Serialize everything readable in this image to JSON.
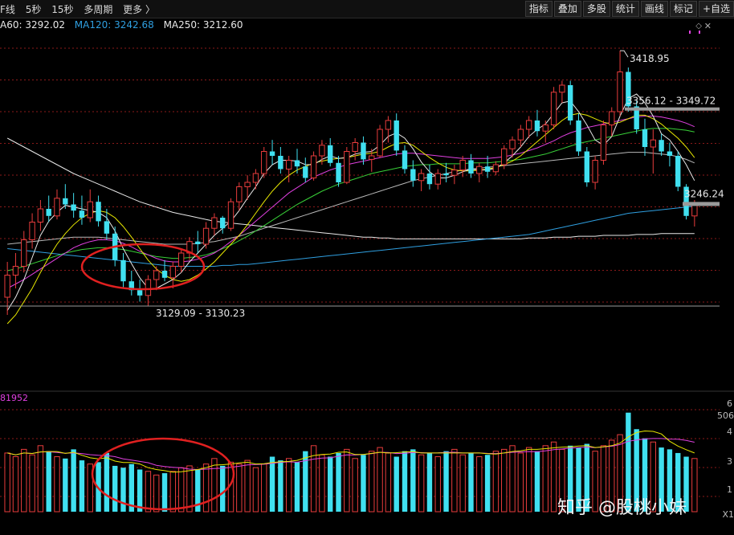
{
  "toolbar": {
    "left": [
      "F线",
      "5秒",
      "15秒",
      "多周期",
      "更多 〉"
    ],
    "right": [
      "指标",
      "叠加",
      "多股",
      "统计",
      "画线",
      "标记",
      "+自选"
    ]
  },
  "ma_legend": [
    {
      "label": "A60: 3292.02",
      "color": "#e8e8e8"
    },
    {
      "label": "MA120: 3242.68",
      "color": "#2f9fe0"
    },
    {
      "label": "MA250: 3212.60",
      "color": "#e8e8e8"
    }
  ],
  "icons": {
    "diamond": "diamond-icon",
    "close": "close-icon",
    "dots": "dots-icon"
  },
  "chart_data": {
    "type": "candlestick",
    "price_range": [
      3040,
      3440
    ],
    "annotations": {
      "high": "3418.95",
      "resistance": "3356.12 - 3349.72",
      "current": "3246.24",
      "support": "3129.09 - 3130.23"
    },
    "levels": {
      "resistance": 3353,
      "current": 3246,
      "support": 3130
    },
    "volume_label": "81952",
    "volume_right_labels": [
      "6",
      "506",
      "4",
      "3",
      "1",
      "X1"
    ],
    "candles": [
      [
        3140,
        3180,
        3120,
        3165
      ],
      [
        3165,
        3190,
        3150,
        3175
      ],
      [
        3175,
        3215,
        3168,
        3205
      ],
      [
        3205,
        3235,
        3195,
        3225
      ],
      [
        3225,
        3250,
        3215,
        3240
      ],
      [
        3240,
        3255,
        3225,
        3232
      ],
      [
        3232,
        3262,
        3228,
        3252
      ],
      [
        3252,
        3268,
        3240,
        3245
      ],
      [
        3245,
        3258,
        3230,
        3238
      ],
      [
        3238,
        3255,
        3222,
        3230
      ],
      [
        3230,
        3262,
        3225,
        3248
      ],
      [
        3248,
        3255,
        3220,
        3226
      ],
      [
        3226,
        3240,
        3205,
        3212
      ],
      [
        3212,
        3220,
        3175,
        3182
      ],
      [
        3182,
        3190,
        3150,
        3158
      ],
      [
        3158,
        3170,
        3142,
        3148
      ],
      [
        3148,
        3160,
        3135,
        3142
      ],
      [
        3142,
        3165,
        3130,
        3160
      ],
      [
        3160,
        3175,
        3148,
        3170
      ],
      [
        3170,
        3182,
        3158,
        3162
      ],
      [
        3162,
        3180,
        3150,
        3175
      ],
      [
        3175,
        3195,
        3168,
        3190
      ],
      [
        3190,
        3208,
        3182,
        3203
      ],
      [
        3203,
        3215,
        3190,
        3200
      ],
      [
        3200,
        3225,
        3195,
        3218
      ],
      [
        3218,
        3235,
        3210,
        3230
      ],
      [
        3230,
        3232,
        3212,
        3218
      ],
      [
        3218,
        3252,
        3215,
        3248
      ],
      [
        3248,
        3270,
        3238,
        3265
      ],
      [
        3265,
        3278,
        3250,
        3270
      ],
      [
        3270,
        3285,
        3262,
        3280
      ],
      [
        3280,
        3310,
        3275,
        3305
      ],
      [
        3305,
        3318,
        3290,
        3300
      ],
      [
        3300,
        3310,
        3280,
        3285
      ],
      [
        3285,
        3300,
        3270,
        3295
      ],
      [
        3295,
        3308,
        3280,
        3288
      ],
      [
        3288,
        3298,
        3270,
        3275
      ],
      [
        3275,
        3305,
        3272,
        3300
      ],
      [
        3300,
        3318,
        3290,
        3312
      ],
      [
        3312,
        3320,
        3288,
        3292
      ],
      [
        3292,
        3300,
        3265,
        3270
      ],
      [
        3270,
        3310,
        3268,
        3305
      ],
      [
        3305,
        3320,
        3295,
        3315
      ],
      [
        3315,
        3322,
        3290,
        3296
      ],
      [
        3296,
        3308,
        3282,
        3300
      ],
      [
        3300,
        3335,
        3298,
        3330
      ],
      [
        3330,
        3345,
        3315,
        3340
      ],
      [
        3340,
        3348,
        3300,
        3306
      ],
      [
        3306,
        3312,
        3280,
        3285
      ],
      [
        3285,
        3295,
        3265,
        3272
      ],
      [
        3272,
        3285,
        3260,
        3280
      ],
      [
        3280,
        3290,
        3262,
        3268
      ],
      [
        3268,
        3285,
        3262,
        3280
      ],
      [
        3280,
        3292,
        3270,
        3278
      ],
      [
        3278,
        3290,
        3268,
        3284
      ],
      [
        3284,
        3300,
        3276,
        3295
      ],
      [
        3295,
        3302,
        3275,
        3280
      ],
      [
        3280,
        3292,
        3270,
        3288
      ],
      [
        3288,
        3300,
        3275,
        3282
      ],
      [
        3282,
        3294,
        3278,
        3290
      ],
      [
        3290,
        3312,
        3285,
        3308
      ],
      [
        3308,
        3322,
        3298,
        3318
      ],
      [
        3318,
        3335,
        3310,
        3330
      ],
      [
        3330,
        3345,
        3320,
        3340
      ],
      [
        3340,
        3352,
        3322,
        3328
      ],
      [
        3328,
        3340,
        3315,
        3335
      ],
      [
        3335,
        3378,
        3330,
        3372
      ],
      [
        3372,
        3385,
        3360,
        3380
      ],
      [
        3380,
        3385,
        3335,
        3340
      ],
      [
        3340,
        3348,
        3300,
        3305
      ],
      [
        3305,
        3310,
        3265,
        3270
      ],
      [
        3270,
        3300,
        3262,
        3295
      ],
      [
        3295,
        3340,
        3290,
        3335
      ],
      [
        3335,
        3355,
        3322,
        3350
      ],
      [
        3350,
        3419,
        3345,
        3395
      ],
      [
        3395,
        3400,
        3350,
        3356
      ],
      [
        3356,
        3362,
        3325,
        3330
      ],
      [
        3330,
        3342,
        3300,
        3310
      ],
      [
        3310,
        3330,
        3280,
        3318
      ],
      [
        3318,
        3325,
        3300,
        3305
      ],
      [
        3305,
        3315,
        3288,
        3300
      ],
      [
        3300,
        3305,
        3260,
        3265
      ],
      [
        3265,
        3268,
        3228,
        3232
      ],
      [
        3232,
        3250,
        3220,
        3246
      ]
    ],
    "volumes": [
      3.2,
      3.0,
      3.4,
      3.1,
      3.6,
      3.3,
      3.0,
      2.9,
      3.4,
      2.8,
      2.6,
      2.7,
      3.2,
      2.5,
      2.4,
      2.6,
      2.3,
      2.2,
      2.0,
      2.1,
      2.2,
      2.4,
      2.5,
      2.3,
      2.6,
      2.9,
      2.5,
      2.7,
      2.6,
      2.8,
      2.4,
      2.6,
      3.0,
      2.8,
      2.9,
      2.7,
      3.3,
      3.6,
      3.1,
      3.0,
      3.2,
      3.4,
      2.9,
      3.1,
      3.3,
      3.5,
      3.2,
      3.0,
      3.3,
      3.4,
      3.1,
      3.2,
      3.0,
      3.3,
      3.4,
      3.1,
      3.2,
      3.0,
      3.1,
      3.3,
      3.4,
      3.6,
      3.2,
      3.5,
      3.3,
      3.6,
      3.8,
      3.4,
      3.6,
      3.5,
      3.7,
      3.3,
      3.6,
      3.9,
      4.2,
      5.4,
      4.5,
      4.0,
      3.8,
      3.5,
      3.4,
      3.2,
      3.0,
      2.9
    ],
    "ma_lines": {
      "ma5": [
        3125,
        3140,
        3160,
        3185,
        3210,
        3226,
        3236,
        3244,
        3242,
        3240,
        3238,
        3236,
        3230,
        3215,
        3195,
        3178,
        3162,
        3150,
        3150,
        3155,
        3160,
        3168,
        3180,
        3190,
        3200,
        3210,
        3218,
        3226,
        3238,
        3252,
        3265,
        3280,
        3290,
        3295,
        3295,
        3294,
        3290,
        3290,
        3296,
        3300,
        3297,
        3298,
        3302,
        3304,
        3305,
        3312,
        3322,
        3326,
        3320,
        3308,
        3293,
        3282,
        3275,
        3275,
        3278,
        3282,
        3285,
        3284,
        3284,
        3286,
        3292,
        3300,
        3310,
        3322,
        3330,
        3336,
        3348,
        3360,
        3362,
        3350,
        3335,
        3318,
        3312,
        3322,
        3345,
        3365,
        3370,
        3360,
        3345,
        3325,
        3318,
        3305,
        3290,
        3272
      ],
      "ma10": [
        3110,
        3120,
        3135,
        3150,
        3168,
        3185,
        3200,
        3212,
        3222,
        3230,
        3235,
        3238,
        3236,
        3230,
        3220,
        3208,
        3195,
        3182,
        3172,
        3165,
        3160,
        3158,
        3160,
        3165,
        3172,
        3180,
        3190,
        3200,
        3210,
        3222,
        3235,
        3248,
        3260,
        3270,
        3278,
        3284,
        3288,
        3292,
        3294,
        3296,
        3297,
        3298,
        3300,
        3302,
        3303,
        3305,
        3310,
        3314,
        3315,
        3312,
        3305,
        3298,
        3292,
        3287,
        3284,
        3283,
        3283,
        3284,
        3285,
        3287,
        3290,
        3294,
        3300,
        3308,
        3316,
        3324,
        3332,
        3340,
        3346,
        3348,
        3346,
        3342,
        3338,
        3336,
        3338,
        3342,
        3346,
        3346,
        3342,
        3336,
        3328,
        3320,
        3310,
        3298
      ],
      "ma20": [
        3150,
        3155,
        3160,
        3166,
        3172,
        3178,
        3184,
        3190,
        3196,
        3200,
        3203,
        3205,
        3205,
        3204,
        3201,
        3197,
        3192,
        3188,
        3184,
        3181,
        3180,
        3180,
        3181,
        3183,
        3186,
        3190,
        3196,
        3203,
        3210,
        3218,
        3226,
        3234,
        3242,
        3250,
        3258,
        3264,
        3270,
        3276,
        3280,
        3284,
        3287,
        3290,
        3292,
        3294,
        3296,
        3298,
        3300,
        3302,
        3303,
        3303,
        3302,
        3301,
        3300,
        3299,
        3298,
        3297,
        3297,
        3297,
        3297,
        3298,
        3299,
        3301,
        3303,
        3306,
        3309,
        3313,
        3317,
        3322,
        3326,
        3329,
        3332,
        3334,
        3336,
        3338,
        3340,
        3342,
        3344,
        3345,
        3345,
        3344,
        3342,
        3340,
        3337,
        3333
      ],
      "ma30": [
        3170,
        3172,
        3175,
        3178,
        3181,
        3184,
        3187,
        3190,
        3192,
        3194,
        3195,
        3196,
        3196,
        3195,
        3194,
        3192,
        3190,
        3188,
        3186,
        3185,
        3184,
        3184,
        3185,
        3186,
        3188,
        3191,
        3195,
        3199,
        3204,
        3209,
        3215,
        3221,
        3227,
        3233,
        3239,
        3245,
        3250,
        3255,
        3260,
        3264,
        3268,
        3271,
        3274,
        3277,
        3280,
        3282,
        3284,
        3286,
        3288,
        3289,
        3290,
        3290,
        3291,
        3291,
        3291,
        3291,
        3292,
        3292,
        3292,
        3293,
        3294,
        3295,
        3296,
        3298,
        3300,
        3302,
        3305,
        3308,
        3311,
        3314,
        3316,
        3318,
        3320,
        3322,
        3324,
        3326,
        3328,
        3330,
        3331,
        3331,
        3331,
        3330,
        3329,
        3327
      ],
      "ma60": [
        3200,
        3201,
        3202,
        3203,
        3204,
        3205,
        3206,
        3207,
        3208,
        3208,
        3208,
        3208,
        3207,
        3206,
        3205,
        3204,
        3203,
        3202,
        3201,
        3200,
        3200,
        3200,
        3200,
        3201,
        3202,
        3203,
        3205,
        3207,
        3209,
        3212,
        3215,
        3218,
        3221,
        3224,
        3227,
        3230,
        3233,
        3236,
        3239,
        3242,
        3245,
        3248,
        3251,
        3254,
        3257,
        3260,
        3263,
        3266,
        3269,
        3272,
        3274,
        3276,
        3278,
        3280,
        3282,
        3284,
        3285,
        3286,
        3287,
        3288,
        3289,
        3290,
        3291,
        3292,
        3293,
        3294,
        3295,
        3296,
        3297,
        3298,
        3299,
        3300,
        3301,
        3302,
        3303,
        3304,
        3304,
        3304,
        3303,
        3302,
        3301,
        3299,
        3296,
        3292
      ],
      "ma120": [
        3195,
        3194,
        3193,
        3192,
        3191,
        3190,
        3189,
        3188,
        3187,
        3186,
        3185,
        3184,
        3183,
        3182,
        3181,
        3180,
        3179,
        3178,
        3177,
        3176,
        3175,
        3175,
        3175,
        3175,
        3175,
        3175,
        3176,
        3176,
        3177,
        3177,
        3178,
        3179,
        3180,
        3181,
        3182,
        3183,
        3184,
        3185,
        3186,
        3187,
        3188,
        3189,
        3190,
        3191,
        3192,
        3193,
        3194,
        3195,
        3196,
        3197,
        3198,
        3199,
        3200,
        3201,
        3202,
        3203,
        3204,
        3205,
        3206,
        3207,
        3208,
        3209,
        3210,
        3211,
        3213,
        3215,
        3217,
        3219,
        3221,
        3223,
        3225,
        3227,
        3229,
        3231,
        3233,
        3235,
        3236,
        3237,
        3238,
        3239,
        3240,
        3241,
        3242,
        3243
      ],
      "ma250": [
        3320,
        3315,
        3310,
        3305,
        3300,
        3295,
        3290,
        3285,
        3280,
        3276,
        3272,
        3268,
        3264,
        3260,
        3256,
        3252,
        3248,
        3245,
        3242,
        3239,
        3236,
        3234,
        3232,
        3230,
        3228,
        3226,
        3225,
        3224,
        3223,
        3222,
        3221,
        3220,
        3219,
        3218,
        3217,
        3216,
        3215,
        3214,
        3213,
        3212,
        3211,
        3210,
        3209,
        3208,
        3208,
        3207,
        3207,
        3206,
        3206,
        3206,
        3206,
        3206,
        3206,
        3206,
        3206,
        3206,
        3206,
        3206,
        3206,
        3206,
        3206,
        3206,
        3206,
        3207,
        3207,
        3207,
        3208,
        3208,
        3208,
        3209,
        3209,
        3209,
        3210,
        3210,
        3210,
        3210,
        3211,
        3211,
        3211,
        3212,
        3212,
        3212,
        3212,
        3212
      ]
    },
    "ma_colors": {
      "ma5": "#e8e8e8",
      "ma10": "#e8e800",
      "ma20": "#e040e0",
      "ma30": "#38d038",
      "ma60": "#b8b8b8",
      "ma120": "#2f9fe0",
      "ma250": "#e8e8e8"
    },
    "vol_ma_colors": {
      "ma5": "#e8e800",
      "ma10": "#e040e0"
    },
    "up_color": "#e83c3c",
    "down_color": "#40e0f0",
    "grid_color": "#8b1a1a"
  },
  "watermark": "知乎 @股桃小妹"
}
